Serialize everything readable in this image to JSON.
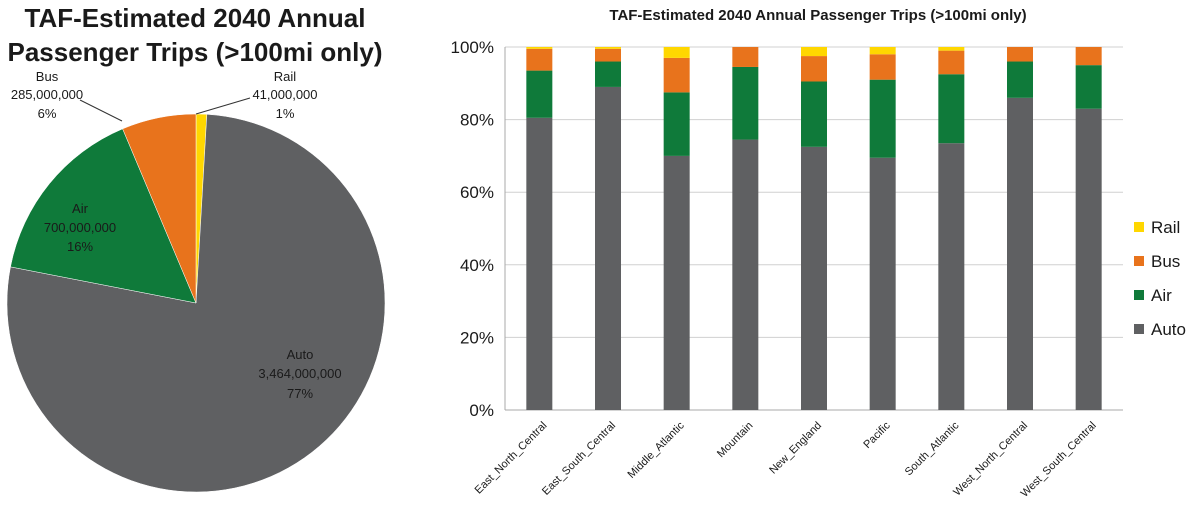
{
  "chart_data": [
    {
      "type": "pie",
      "title": "TAF-Estimated 2040 Annual Passenger Trips (>100mi only)",
      "title_lines": [
        "TAF-Estimated 2040 Annual",
        "Passenger Trips (>100mi only)"
      ],
      "slices": [
        {
          "name": "Rail",
          "value": 41000000,
          "label": "41,000,000",
          "percent": "1%",
          "color": "#ffd700"
        },
        {
          "name": "Auto",
          "value": 3464000000,
          "label": "3,464,000,000",
          "percent": "77%",
          "color": "#5f6062"
        },
        {
          "name": "Air",
          "value": 700000000,
          "label": "700,000,000",
          "percent": "16%",
          "color": "#0f7a3a"
        },
        {
          "name": "Bus",
          "value": 285000000,
          "label": "285,000,000",
          "percent": "6%",
          "color": "#e8731c"
        }
      ]
    },
    {
      "type": "bar",
      "stacked": true,
      "percent_stacked": true,
      "title": "TAF-Estimated 2040 Annual Passenger Trips (>100mi only)",
      "categories": [
        "East_North_Central",
        "East_South_Central",
        "Middle_Atlantic",
        "Mountain",
        "New_England",
        "Pacific",
        "South_Atlantic",
        "West_North_Central",
        "West_South_Central"
      ],
      "series": [
        {
          "name": "Auto",
          "color": "#5f6062",
          "values": [
            80.5,
            89,
            70,
            74.5,
            72.5,
            69.5,
            73.5,
            86,
            83
          ]
        },
        {
          "name": "Air",
          "color": "#0f7a3a",
          "values": [
            13,
            7,
            17.5,
            20,
            18,
            21.5,
            19,
            10,
            12
          ]
        },
        {
          "name": "Bus",
          "color": "#e8731c",
          "values": [
            6,
            3.5,
            9.5,
            5.5,
            7,
            7,
            6.5,
            4,
            5
          ]
        },
        {
          "name": "Rail",
          "color": "#ffd700",
          "values": [
            0.5,
            0.5,
            3,
            0,
            2.5,
            2,
            1,
            0,
            0
          ]
        }
      ],
      "yticks": [
        "0%",
        "20%",
        "40%",
        "60%",
        "80%",
        "100%"
      ],
      "ylim": [
        0,
        100
      ],
      "grid": true,
      "legend": {
        "placement": "right",
        "items": [
          "Rail",
          "Bus",
          "Air",
          "Auto"
        ]
      }
    }
  ]
}
